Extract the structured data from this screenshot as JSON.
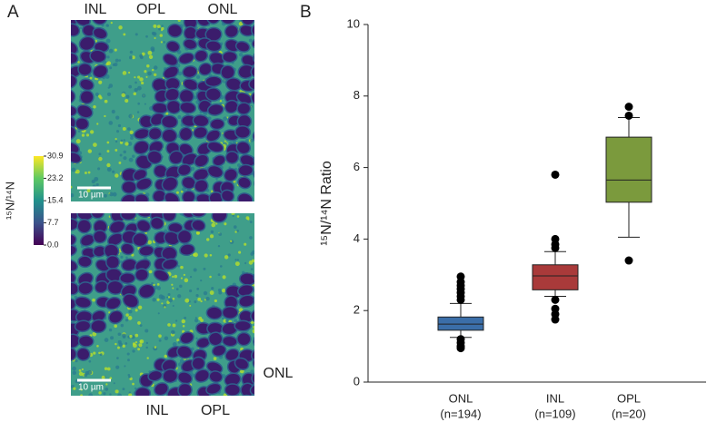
{
  "panel_a": {
    "label": "A",
    "top_labels": [
      "INL",
      "OPL",
      "ONL"
    ],
    "bottom_labels": [
      "INL",
      "OPL",
      "ONL"
    ],
    "scale_bars": [
      "10 µm",
      "10 µm"
    ],
    "colorbar": {
      "label": "¹⁵N/¹⁴N",
      "clim": [
        0,
        30.9
      ],
      "ticks": [
        {
          "value": 0,
          "label": "0.0"
        },
        7.7,
        15.4,
        23.2,
        30.9
      ]
    }
  },
  "chart_data": {
    "type": "box",
    "panel_label": "B",
    "ylabel": "¹⁵N/¹⁴N Ratio",
    "ylim": [
      0,
      10
    ],
    "yticks": [
      0,
      2,
      4,
      6,
      8,
      10
    ],
    "series": [
      {
        "name": "ONL",
        "n_label": "(n=194)",
        "color": "#3b6ea8",
        "whislo": 1.25,
        "q1": 1.45,
        "med": 1.62,
        "q3": 1.82,
        "whishi": 2.2,
        "outliers": [
          2.3,
          2.4,
          2.5,
          2.6,
          2.7,
          2.8,
          2.95,
          1.2,
          1.1,
          1.0,
          0.95
        ]
      },
      {
        "name": "INL",
        "n_label": "(n=109)",
        "color": "#a93a3a",
        "whislo": 2.4,
        "q1": 2.58,
        "med": 2.97,
        "q3": 3.28,
        "whishi": 3.65,
        "outliers": [
          3.75,
          3.85,
          4.0,
          5.8,
          2.3,
          2.05,
          1.9,
          1.75
        ]
      },
      {
        "name": "OPL",
        "n_label": "(n=20)",
        "color": "#7b9a3d",
        "whislo": 4.05,
        "q1": 5.03,
        "med": 5.65,
        "q3": 6.85,
        "whishi": 7.4,
        "outliers": [
          7.45,
          7.7,
          3.4
        ]
      }
    ]
  }
}
